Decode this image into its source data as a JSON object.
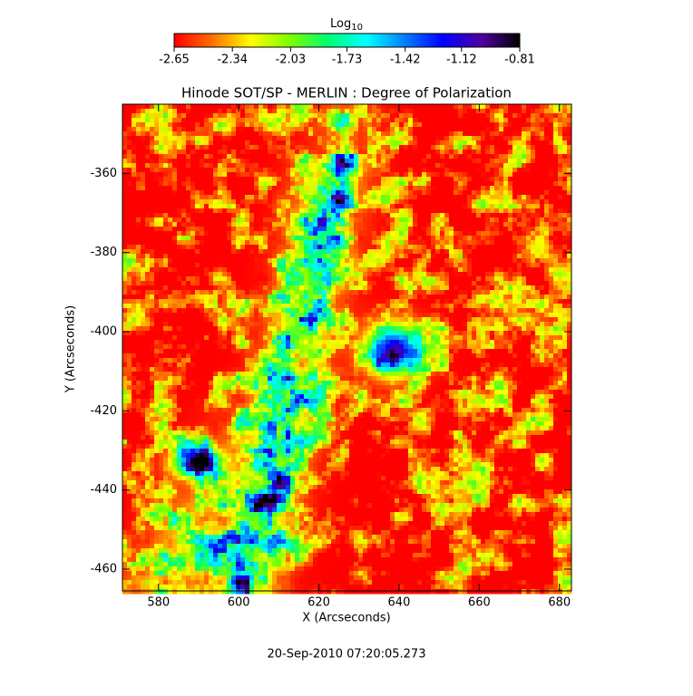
{
  "chart_data": {
    "type": "heatmap",
    "title": "Hinode SOT/SP - MERLIN : Degree of Polarization",
    "x_label": "X (Arcseconds)",
    "y_label": "Y (Arcseconds)",
    "footer": "20-Sep-2010 07:20:05.273",
    "xlim": [
      571,
      683
    ],
    "xticks": [
      580,
      600,
      620,
      640,
      660,
      680
    ],
    "ylim": [
      -465.5,
      -342.5
    ],
    "yticks": [
      -360,
      -380,
      -400,
      -420,
      -440,
      -460
    ],
    "colorbar": {
      "label_base": "Log",
      "label_sub": "10",
      "lim": [
        -2.65,
        -0.81
      ],
      "ticks": [
        -2.65,
        -2.34,
        -2.03,
        -1.73,
        -1.42,
        -1.12,
        -0.81
      ],
      "colormap": [
        "#ff0000",
        "#ff7000",
        "#ffff00",
        "#80ff00",
        "#00ff70",
        "#00ffff",
        "#0080ff",
        "#0000ff",
        "#5000a0",
        "#000000"
      ]
    }
  }
}
